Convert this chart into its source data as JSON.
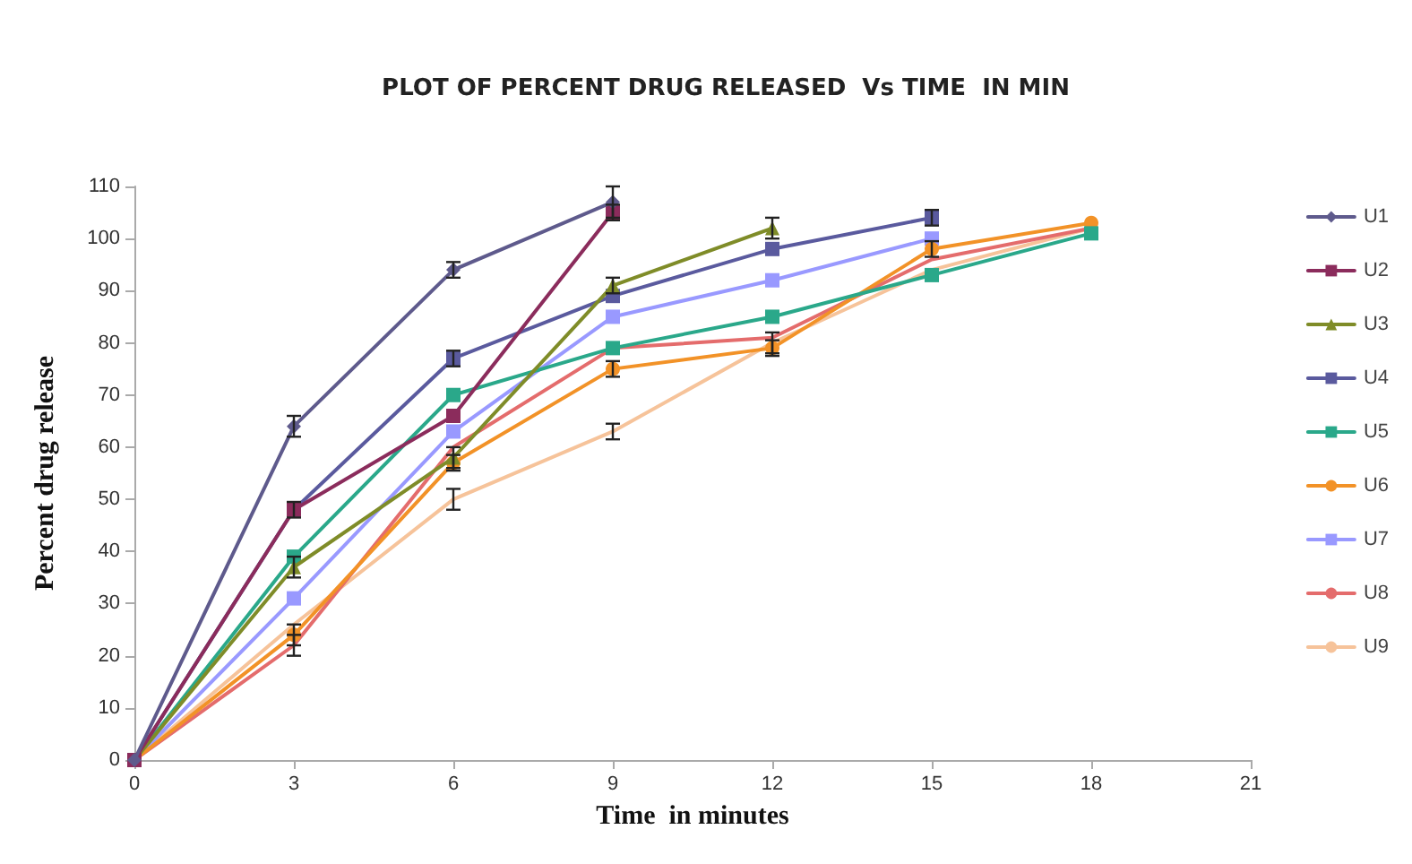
{
  "chart_data": {
    "type": "line",
    "title": "PLOT OF PERCENT DRUG RELEASED  Vs TIME  IN MIN",
    "xlabel": "Time  in minutes",
    "ylabel": "Percent drug release",
    "x": [
      0,
      3,
      6,
      9,
      12,
      15,
      18
    ],
    "xlim": [
      0,
      21
    ],
    "xticks": [
      0,
      3,
      6,
      9,
      12,
      15,
      18,
      21
    ],
    "ylim": [
      0,
      110
    ],
    "yticks": [
      0,
      10,
      20,
      30,
      40,
      50,
      60,
      70,
      80,
      90,
      100,
      110
    ],
    "legend": "right",
    "series": [
      {
        "name": "U1",
        "color": "#5e5a8c",
        "marker": "diamond",
        "values": [
          0,
          64,
          94,
          107,
          null,
          null,
          null
        ],
        "errors": [
          null,
          2,
          1.5,
          3,
          null,
          null,
          null
        ]
      },
      {
        "name": "U2",
        "color": "#8b2c5c",
        "marker": "square",
        "values": [
          0,
          48,
          66,
          105,
          null,
          null,
          null
        ],
        "errors": [
          null,
          1.5,
          null,
          1.5,
          null,
          null,
          null
        ]
      },
      {
        "name": "U3",
        "color": "#7f8c28",
        "marker": "triangle",
        "values": [
          0,
          37,
          58,
          91,
          102,
          null,
          null
        ],
        "errors": [
          null,
          2,
          2,
          1.5,
          2,
          null,
          null
        ]
      },
      {
        "name": "U4",
        "color": "#5a5a9e",
        "marker": "square",
        "values": [
          0,
          48,
          77,
          89,
          98,
          104,
          null
        ],
        "errors": [
          null,
          null,
          1.5,
          null,
          null,
          1.5,
          null
        ]
      },
      {
        "name": "U5",
        "color": "#2aa88a",
        "marker": "square",
        "values": [
          0,
          39,
          70,
          79,
          85,
          93,
          101
        ]
      },
      {
        "name": "U6",
        "color": "#f29227",
        "marker": "circle",
        "values": [
          0,
          24,
          57,
          75,
          79,
          98,
          103
        ],
        "errors": [
          null,
          2,
          1.5,
          1.5,
          1.5,
          1.5,
          null
        ]
      },
      {
        "name": "U7",
        "color": "#9999ff",
        "marker": "square",
        "values": [
          0,
          31,
          63,
          85,
          92,
          100,
          null
        ]
      },
      {
        "name": "U8",
        "color": "#e46c6c",
        "marker": "none",
        "values": [
          0,
          22,
          60,
          79,
          81,
          96,
          102
        ],
        "errors": [
          null,
          2,
          null,
          null,
          null,
          null,
          null
        ]
      },
      {
        "name": "U9",
        "color": "#f6c39a",
        "marker": "none",
        "values": [
          0,
          26,
          50,
          63,
          80,
          94,
          102
        ],
        "errors": [
          null,
          null,
          2,
          1.5,
          2,
          null,
          null
        ]
      }
    ]
  }
}
